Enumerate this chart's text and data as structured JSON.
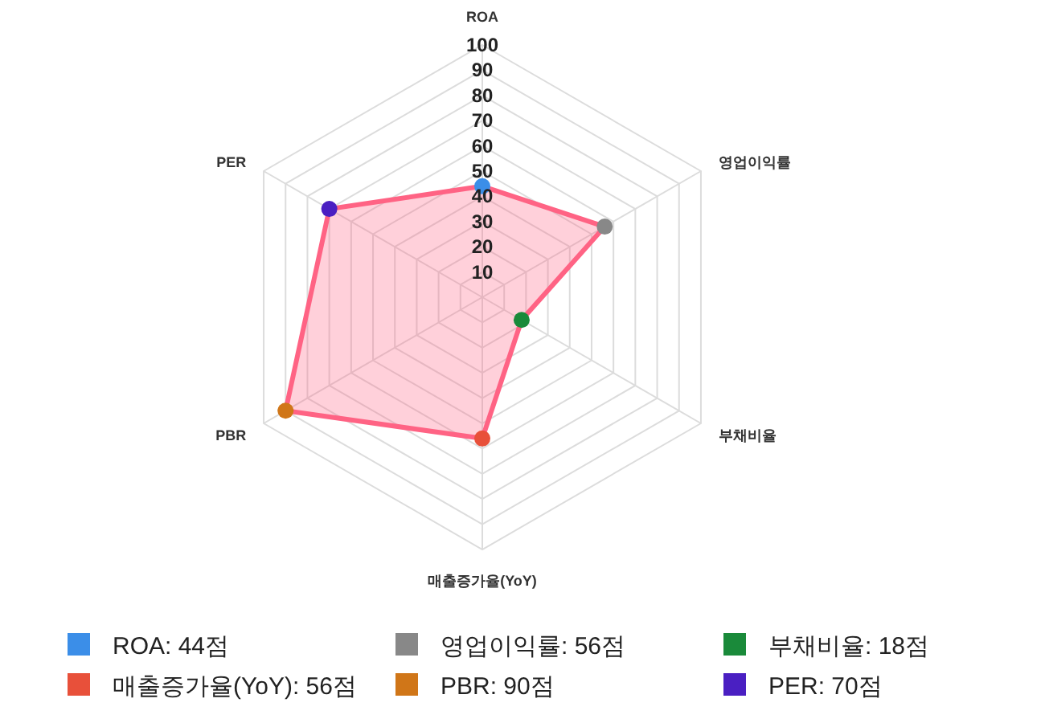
{
  "chart_data": {
    "type": "radar",
    "categories": [
      "ROA",
      "영업이익률",
      "부채비율",
      "매출증가율(YoY)",
      "PBR",
      "PER"
    ],
    "series": [
      {
        "color": "#ff6384",
        "values": [
          44,
          56,
          18,
          56,
          90,
          70
        ],
        "colors": [
          "#3b8ee8",
          "#888888",
          "#1a8a3a",
          "#e8503a",
          "#d07618",
          "#4a1fc2"
        ]
      }
    ],
    "annotations": [
      "ROA: 44점",
      "영업이익률: 56점",
      "부채비율: 18점",
      "매출증가율(YoY): 56점",
      "PBR: 90점",
      "PER: 70점"
    ],
    "ylim": [
      0,
      100
    ],
    "yticks": [
      10,
      20,
      30,
      40,
      50,
      60,
      70,
      80,
      90,
      100
    ],
    "grid": true,
    "marker": "circle"
  }
}
